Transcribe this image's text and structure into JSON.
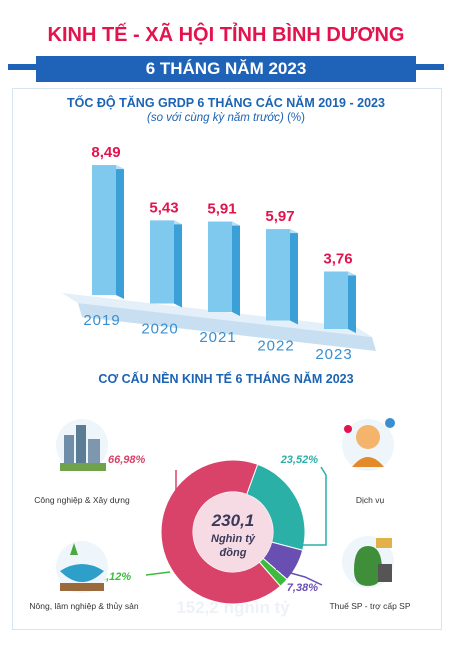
{
  "header": {
    "title": "KINH TẾ - XÃ HỘI TỈNH BÌNH DƯƠNG",
    "subtitle": "6 THÁNG NĂM 2023"
  },
  "bar_section": {
    "title": "TỐC ĐỘ TĂNG GRDP 6 THÁNG CÁC NĂM 2019 - 2023",
    "subtitle_italic": "(so với cùng kỳ năm trước)",
    "subtitle_unit": " (%)"
  },
  "pie_section": {
    "title": "CƠ CẤU NỀN KINH TẾ 6 THÁNG NĂM 2023",
    "center_value": "230,1",
    "center_unit": "Nghìn tỷ",
    "center_unit2": "đồng",
    "ghost_text": "152,2 nghìn tỷ"
  },
  "chart_data": [
    {
      "type": "bar",
      "title": "TỐC ĐỘ TĂNG GRDP 6 THÁNG CÁC NĂM 2019 - 2023",
      "categories": [
        "2019",
        "2020",
        "2021",
        "2022",
        "2023"
      ],
      "values": [
        8.49,
        5.43,
        5.91,
        5.97,
        3.76
      ],
      "value_labels": [
        "8,49",
        "5,43",
        "5,91",
        "5,97",
        "3,76"
      ],
      "ylim": [
        0,
        10
      ],
      "bar_color": "#7fc8ee",
      "label_color": "#e3134d"
    },
    {
      "type": "pie",
      "title": "CƠ CẤU NỀN KINH TẾ 6 THÁNG NĂM 2023",
      "slices": [
        {
          "name": "Công nghiệp & Xây dựng",
          "value": 66.98,
          "label": "66,98%",
          "color": "#d9436a"
        },
        {
          "name": "Dịch vụ",
          "value": 23.52,
          "label": "23,52%",
          "color": "#2bb0a8"
        },
        {
          "name": "Thuế SP - trợ cấp SP",
          "value": 7.38,
          "label": "7,38%",
          "color": "#6a4fb3"
        },
        {
          "name": "Nông, lâm nghiệp & thủy sản",
          "value": 2.12,
          "label": "2,12%",
          "color": "#3dbb3d"
        }
      ]
    }
  ]
}
